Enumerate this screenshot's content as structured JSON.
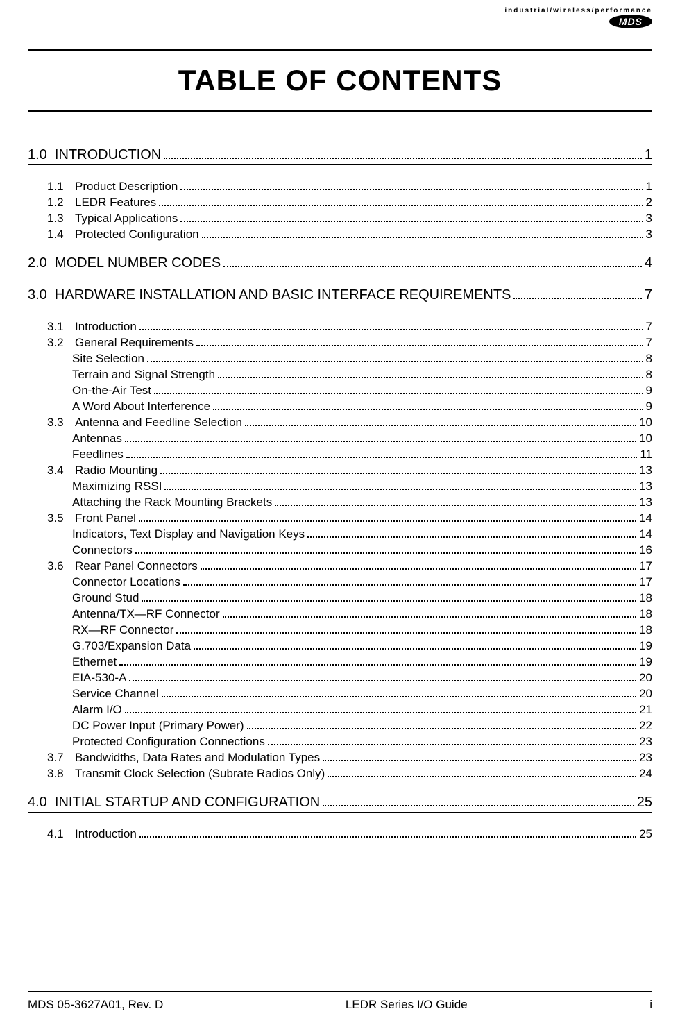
{
  "header": {
    "tagline": "industrial/wireless/performance",
    "logo": "MDS"
  },
  "title": "TABLE OF CONTENTS",
  "toc": [
    {
      "type": "section",
      "num": "1.0",
      "title": "INTRODUCTION",
      "page": "1"
    },
    {
      "type": "sub",
      "num": "1.1",
      "title": "Product Description",
      "page": "1"
    },
    {
      "type": "sub",
      "num": "1.2",
      "title": "LEDR Features",
      "page": "2"
    },
    {
      "type": "sub",
      "num": "1.3",
      "title": "Typical Applications",
      "page": "3"
    },
    {
      "type": "sub",
      "num": "1.4",
      "title": "Protected Configuration",
      "page": "3"
    },
    {
      "type": "section",
      "num": "2.0",
      "title": "MODEL NUMBER CODES",
      "page": "4"
    },
    {
      "type": "section",
      "num": "3.0",
      "title": "HARDWARE INSTALLATION AND BASIC INTERFACE REQUIREMENTS",
      "page": "7"
    },
    {
      "type": "sub",
      "num": "3.1",
      "title": "Introduction",
      "page": "7"
    },
    {
      "type": "sub",
      "num": "3.2",
      "title": "General Requirements",
      "page": "7"
    },
    {
      "type": "item",
      "title": "Site Selection",
      "page": "8"
    },
    {
      "type": "item",
      "title": "Terrain and Signal Strength",
      "page": "8"
    },
    {
      "type": "item",
      "title": "On-the-Air Test",
      "page": "9"
    },
    {
      "type": "item",
      "title": "A Word About Interference",
      "page": "9"
    },
    {
      "type": "sub",
      "num": "3.3",
      "title": "Antenna and Feedline Selection",
      "page": "10"
    },
    {
      "type": "item",
      "title": "Antennas",
      "page": "10"
    },
    {
      "type": "item",
      "title": "Feedlines",
      "page": "11"
    },
    {
      "type": "sub",
      "num": "3.4",
      "title": "Radio Mounting",
      "page": "13"
    },
    {
      "type": "item",
      "title": "Maximizing RSSI",
      "page": "13"
    },
    {
      "type": "item",
      "title": "Attaching the Rack Mounting Brackets",
      "page": "13"
    },
    {
      "type": "sub",
      "num": "3.5",
      "title": "Front Panel",
      "page": "14"
    },
    {
      "type": "item",
      "title": "Indicators, Text Display and Navigation Keys",
      "page": "14"
    },
    {
      "type": "item",
      "title": "Connectors",
      "page": "16"
    },
    {
      "type": "sub",
      "num": "3.6",
      "title": "Rear Panel Connectors",
      "page": "17"
    },
    {
      "type": "item",
      "title": "Connector Locations",
      "page": "17"
    },
    {
      "type": "item",
      "title": "Ground Stud",
      "page": "18"
    },
    {
      "type": "item",
      "title": "Antenna/TX—RF Connector",
      "page": "18"
    },
    {
      "type": "item",
      "title": "RX—RF Connector",
      "page": "18"
    },
    {
      "type": "item",
      "title": "G.703/Expansion Data",
      "page": "19"
    },
    {
      "type": "item",
      "title": "Ethernet",
      "page": "19"
    },
    {
      "type": "item",
      "title": "EIA-530-A",
      "page": "20"
    },
    {
      "type": "item",
      "title": "Service Channel",
      "page": "20"
    },
    {
      "type": "item",
      "title": "Alarm I/O",
      "page": "21"
    },
    {
      "type": "item",
      "title": "DC Power Input (Primary Power)",
      "page": "22"
    },
    {
      "type": "item",
      "title": "Protected Configuration Connections",
      "page": "23"
    },
    {
      "type": "sub",
      "num": "3.7",
      "title": "Bandwidths, Data Rates and Modulation Types",
      "page": "23"
    },
    {
      "type": "sub",
      "num": "3.8",
      "title": "Transmit Clock Selection (Subrate Radios Only)",
      "page": "24"
    },
    {
      "type": "section",
      "num": "4.0",
      "title": "INITIAL STARTUP AND CONFIGURATION",
      "page": "25"
    },
    {
      "type": "sub",
      "num": "4.1",
      "title": "Introduction",
      "page": "25"
    }
  ],
  "footer": {
    "left": "MDS 05-3627A01, Rev. D",
    "center": "LEDR Series I/O Guide",
    "right": "i"
  }
}
